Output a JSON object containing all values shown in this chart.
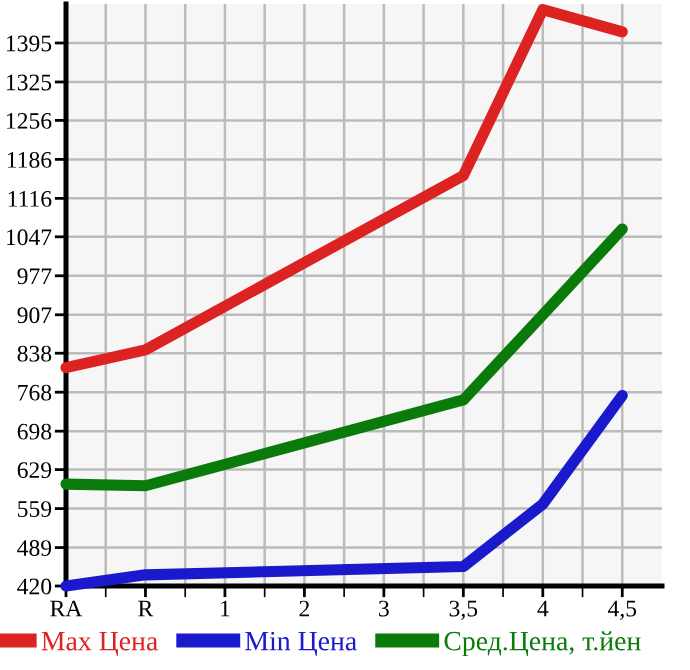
{
  "chart_data": {
    "type": "line",
    "categories": [
      "RA",
      "R",
      "1",
      "2",
      "3",
      "3,5",
      "4",
      "4,5"
    ],
    "series": [
      {
        "name": "Max Цена",
        "color": "#dd2222",
        "values": [
          812,
          844,
          null,
          null,
          null,
          1157,
          1455,
          1415
        ]
      },
      {
        "name": "Min Цена",
        "color": "#1a1acc",
        "values": [
          420,
          440,
          null,
          null,
          null,
          455,
          567,
          762
        ]
      },
      {
        "name": "Сред.Цена, т.йен",
        "color": "#0a7a0a",
        "values": [
          603,
          600,
          null,
          null,
          null,
          754,
          907,
          1061
        ]
      }
    ],
    "ylim": [
      420,
      1465
    ],
    "yticks": [
      420,
      489,
      559,
      629,
      698,
      768,
      838,
      907,
      977,
      1047,
      1116,
      1186,
      1256,
      1325,
      1395
    ],
    "grid": true,
    "legend": "bottom",
    "marker": "none",
    "line_style": "solid"
  }
}
